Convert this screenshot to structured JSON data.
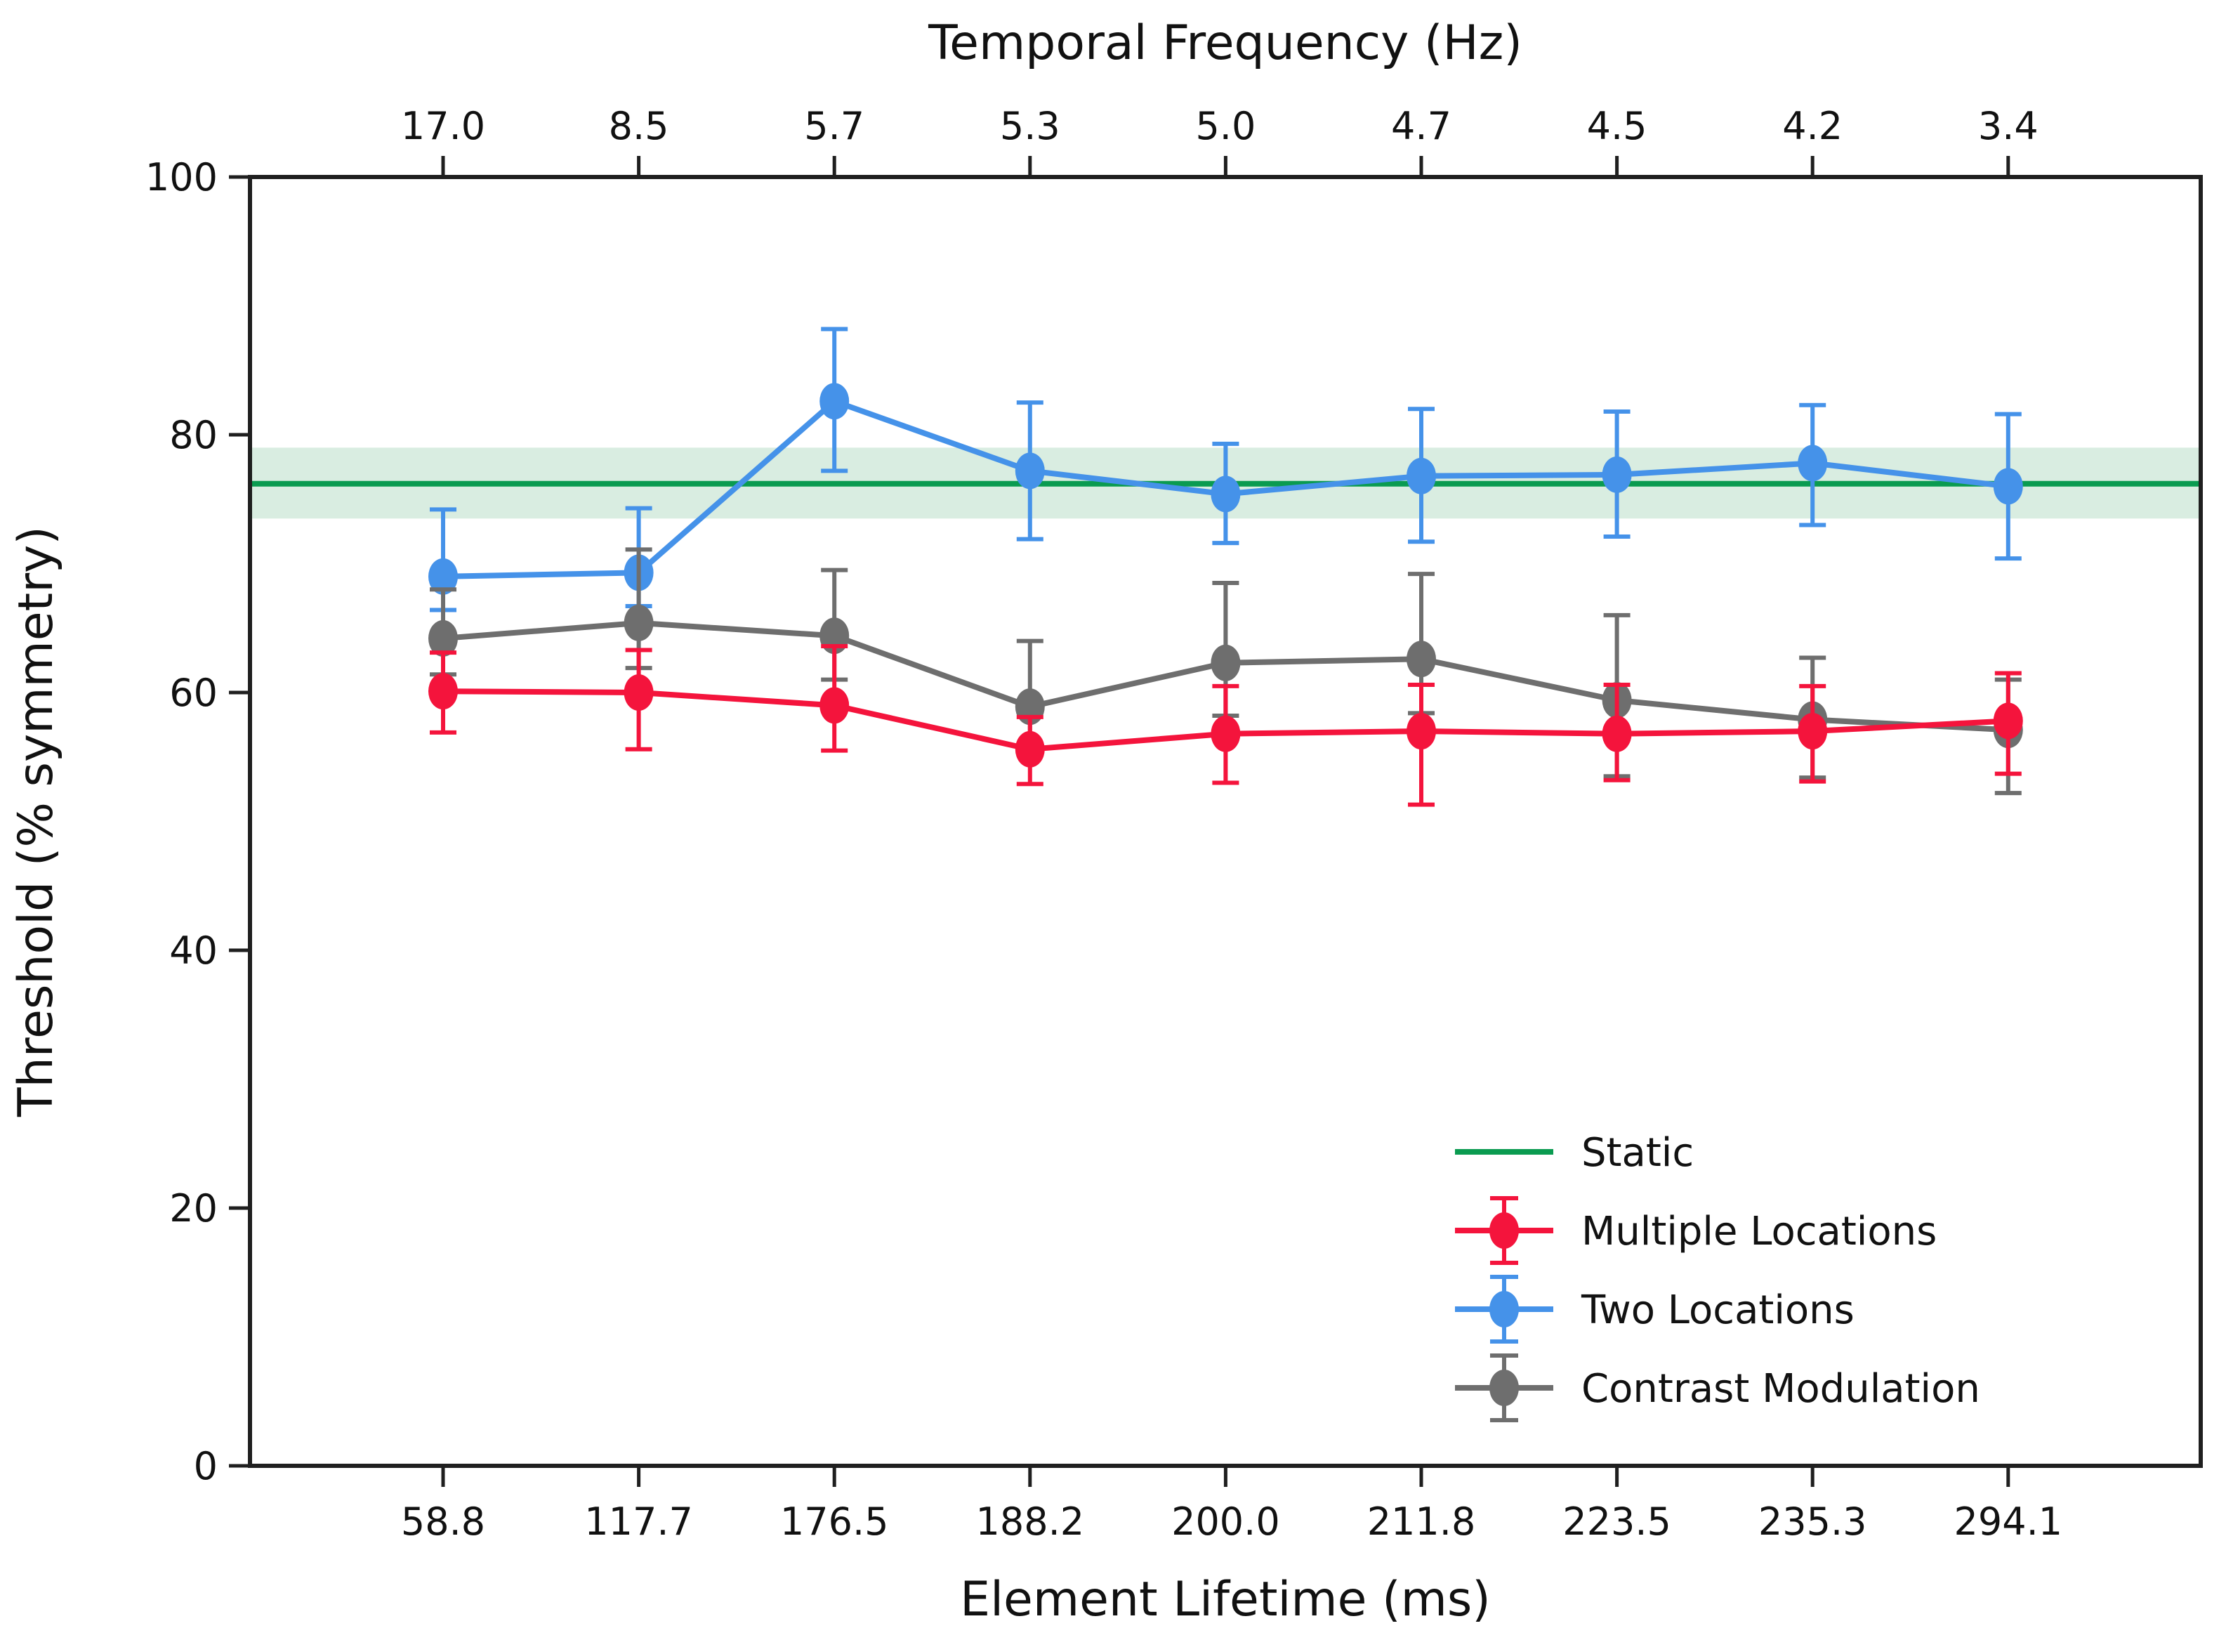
{
  "chart_data": {
    "type": "line",
    "top_axis": {
      "title": "Temporal Frequency (Hz)",
      "tick_labels": [
        "17.0",
        "8.5",
        "5.7",
        "5.3",
        "5.0",
        "4.7",
        "4.5",
        "4.2",
        "3.4"
      ]
    },
    "x_axis": {
      "title": "Element Lifetime (ms)",
      "tick_labels": [
        "58.8",
        "117.7",
        "176.5",
        "188.2",
        "200.0",
        "211.8",
        "223.5",
        "235.3",
        "294.1"
      ]
    },
    "y_axis": {
      "title": "Threshold (% symmetry)",
      "ticks": [
        0,
        20,
        40,
        60,
        80,
        100
      ],
      "range": [
        0,
        100
      ]
    },
    "static_reference": {
      "label": "Static",
      "mean": 76.2,
      "band_low": 73.5,
      "band_high": 79.0,
      "line_color": "#0a9b50",
      "band_color": "#d9ede1"
    },
    "series": [
      {
        "name": "Two Locations",
        "color": "#4592e9",
        "values": [
          69.0,
          69.3,
          82.6,
          77.2,
          75.4,
          76.8,
          76.9,
          77.8,
          76.0
        ],
        "err_up": [
          5.2,
          5.0,
          5.6,
          5.3,
          3.9,
          5.2,
          4.9,
          4.5,
          5.6
        ],
        "err_down": [
          2.6,
          2.6,
          5.4,
          5.3,
          3.8,
          5.1,
          4.8,
          4.8,
          5.6
        ]
      },
      {
        "name": "Contrast Modulation",
        "color": "#6e6e6e",
        "values": [
          64.2,
          65.4,
          64.4,
          58.9,
          62.3,
          62.6,
          59.4,
          57.9,
          57.1
        ],
        "err_up": [
          3.8,
          5.7,
          5.1,
          5.1,
          6.2,
          6.6,
          6.6,
          4.8,
          3.9
        ],
        "err_down": [
          2.8,
          3.5,
          3.4,
          3.2,
          4.1,
          4.2,
          5.9,
          4.5,
          4.9
        ]
      },
      {
        "name": "Multiple Locations",
        "color": "#f4143c",
        "values": [
          60.1,
          60.0,
          59.0,
          55.6,
          56.8,
          57.0,
          56.8,
          57.0,
          57.8
        ],
        "err_up": [
          3.0,
          3.3,
          4.6,
          2.5,
          3.7,
          3.6,
          3.8,
          3.5,
          3.7
        ],
        "err_down": [
          3.2,
          4.4,
          3.5,
          2.7,
          3.8,
          5.7,
          3.6,
          3.9,
          4.1
        ]
      }
    ],
    "legend": {
      "location": "lower right",
      "items": [
        {
          "label": "Static",
          "color": "#0a9b50",
          "marker": false
        },
        {
          "label": "Multiple Locations",
          "color": "#f4143c",
          "marker": true
        },
        {
          "label": "Two Locations",
          "color": "#4592e9",
          "marker": true
        },
        {
          "label": "Contrast Modulation",
          "color": "#6e6e6e",
          "marker": true
        }
      ]
    }
  }
}
